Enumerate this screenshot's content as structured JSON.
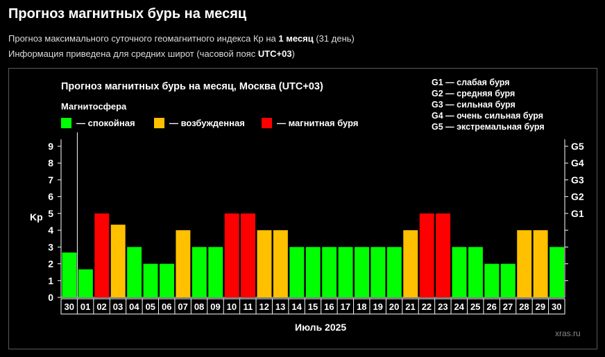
{
  "page": {
    "title": "Прогноз магнитных бурь на месяц",
    "desc1_prefix": "Прогноз максимального суточного геомагнитного индекса Кр на ",
    "desc1_bold": "1 месяц",
    "desc1_suffix": " (31 день)",
    "desc2_prefix": "Информация приведена для средних широт (часовой пояс ",
    "desc2_bold": "UTC+03",
    "desc2_suffix": ")"
  },
  "chart_data": {
    "type": "bar",
    "title": "Прогноз магнитных бурь на месяц, Москва (UTC+03)",
    "legend_title": "Магнитосфера",
    "legend": [
      {
        "key": "quiet",
        "label": "— спокойная",
        "color": "#00ff00"
      },
      {
        "key": "excited",
        "label": "— возбужденная",
        "color": "#ffc000"
      },
      {
        "key": "storm",
        "label": "— магнитная буря",
        "color": "#ff0000"
      }
    ],
    "g_legend": [
      "G1 — слабая буря",
      "G2 — средняя буря",
      "G3 — сильная буря",
      "G4 — очень сильная буря",
      "G5 — экстремальная буря"
    ],
    "ylabel": "Kp",
    "xlabel": "Июль 2025",
    "ylim": [
      0,
      9
    ],
    "yticks": [
      "0",
      "1",
      "2",
      "3",
      "4",
      "5",
      "6",
      "7",
      "8",
      "9"
    ],
    "right_ticks": [
      {
        "label": "G1",
        "value": 5
      },
      {
        "label": "G2",
        "value": 6
      },
      {
        "label": "G3",
        "value": 7
      },
      {
        "label": "G4",
        "value": 8
      },
      {
        "label": "G5",
        "value": 9
      }
    ],
    "categories": [
      "30",
      "01",
      "02",
      "03",
      "04",
      "05",
      "06",
      "07",
      "08",
      "09",
      "10",
      "11",
      "12",
      "13",
      "14",
      "15",
      "16",
      "17",
      "18",
      "19",
      "20",
      "21",
      "22",
      "23",
      "24",
      "25",
      "26",
      "27",
      "28",
      "29",
      "30"
    ],
    "values": [
      2.67,
      1.67,
      5,
      4.33,
      3,
      2,
      2,
      4,
      3,
      3,
      5,
      5,
      4,
      4,
      3,
      3,
      3,
      3,
      3,
      3,
      3,
      4,
      5,
      5,
      3,
      3,
      2,
      2,
      4,
      4,
      3
    ],
    "colors": {
      "quiet": "#00ff00",
      "excited": "#ffc000",
      "storm": "#ff0000"
    },
    "grid": false,
    "current_day_index": 0,
    "watermark": "xras.ru"
  }
}
